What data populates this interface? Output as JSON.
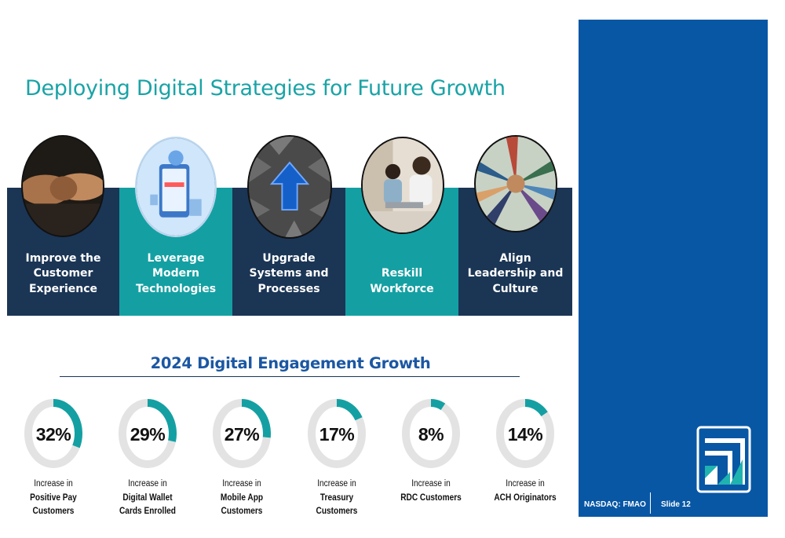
{
  "slide": {
    "title": "Deploying Digital Strategies for Future Growth",
    "ticker": "NASDAQ: FMAO",
    "slide_number": "Slide 12"
  },
  "pillars": [
    {
      "label": "Improve the\nCustomer\nExperience",
      "style": "dark",
      "image": "handshake-photo"
    },
    {
      "label": "Leverage\nModern\nTechnologies",
      "style": "teal",
      "image": "mobile-technology-illustration"
    },
    {
      "label": "Upgrade\nSystems and\nProcesses",
      "style": "dark",
      "image": "upward-arrow-maze-graphic"
    },
    {
      "label": "Reskill\nWorkforce",
      "style": "teal",
      "image": "employees-training-photo"
    },
    {
      "label": "Align\nLeadership and\nCulture",
      "style": "dark",
      "image": "team-hands-together-photo"
    }
  ],
  "growth": {
    "title": "2024 Digital Engagement Growth",
    "metrics": [
      {
        "percent_label": "32%",
        "percent": 32,
        "lead": "Increase in",
        "subject": "Positive Pay\nCustomers"
      },
      {
        "percent_label": "29%",
        "percent": 29,
        "lead": "Increase in",
        "subject": "Digital Wallet\nCards Enrolled"
      },
      {
        "percent_label": "27%",
        "percent": 27,
        "lead": "Increase in",
        "subject": "Mobile App\nCustomers"
      },
      {
        "percent_label": "17%",
        "percent": 17,
        "lead": "Increase in",
        "subject": "Treasury\nCustomers"
      },
      {
        "percent_label": "8%",
        "percent": 8,
        "lead": "Increase in",
        "subject": "RDC Customers"
      },
      {
        "percent_label": "14%",
        "percent": 14,
        "lead": "Increase in",
        "subject": "ACH Originators"
      }
    ]
  },
  "colors": {
    "title_teal": "#1aa3a6",
    "panel_blue": "#0857a5",
    "pillar_dark": "#1b3555",
    "pillar_teal": "#14a0a3",
    "ring_fill": "#14a0a3",
    "ring_track": "#e3e3e3",
    "heading_blue": "#1b57a3"
  }
}
